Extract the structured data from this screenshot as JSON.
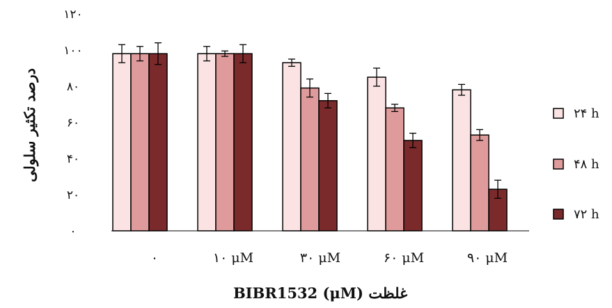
{
  "chart_data": {
    "type": "bar",
    "xlabel": "غلظت BIBR1532 (μM)",
    "ylabel": "درصد تکثیر سلولی",
    "ylim": [
      0,
      120
    ],
    "y_ticks": [
      0,
      20,
      40,
      60,
      80,
      100,
      120
    ],
    "y_tick_labels": [
      "۰",
      "۲۰",
      "۴۰",
      "۶۰",
      "۸۰",
      "۱۰۰",
      "۱۲۰"
    ],
    "categories": [
      "۰",
      "۱۰ μM",
      "۳۰ μM",
      "۶۰ μM",
      "۹۰ μM"
    ],
    "series": [
      {
        "name": "۲۴ h",
        "color": "#fbe3e3",
        "values": [
          98,
          98,
          93,
          85,
          78
        ],
        "errors": [
          5,
          4,
          2,
          5,
          3
        ]
      },
      {
        "name": "۴۸ h",
        "color": "#df9b9b",
        "values": [
          98,
          98,
          79,
          68,
          53
        ],
        "errors": [
          4,
          1.5,
          5,
          2,
          3
        ]
      },
      {
        "name": "۷۲ h",
        "color": "#7a2a2a",
        "values": [
          98,
          98,
          72,
          50,
          23
        ],
        "errors": [
          6,
          5,
          4,
          4,
          5
        ]
      }
    ],
    "legend_position": "right",
    "grid": false
  }
}
